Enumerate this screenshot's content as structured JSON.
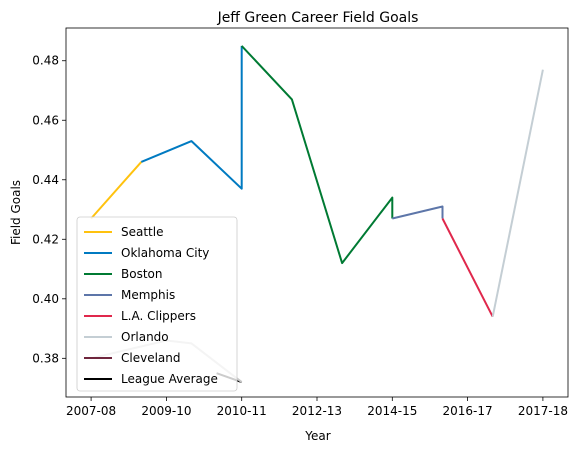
{
  "chart_data": {
    "type": "line",
    "title": "Jeff Green  Career Field Goals",
    "xlabel": "Year",
    "ylabel": "Field Goals",
    "x_ticks": [
      "2007-08",
      "2009-10",
      "2010-11",
      "2012-13",
      "2014-15",
      "2016-17",
      "2017-18"
    ],
    "x_tick_positions": [
      0,
      1.5,
      3,
      4.5,
      6,
      7.5,
      9
    ],
    "xlim": [
      -0.5,
      9.5
    ],
    "y_ticks": [
      0.38,
      0.4,
      0.42,
      0.44,
      0.46,
      0.48
    ],
    "ylim": [
      0.367,
      0.491
    ],
    "grid": false,
    "legend_position": "lower-left",
    "series": [
      {
        "name": "Seattle",
        "color": "#ffc20e",
        "points": [
          [
            0,
            0.427
          ],
          [
            1,
            0.446
          ]
        ]
      },
      {
        "name": "Oklahoma City",
        "color": "#007ac1",
        "points": [
          [
            1,
            0.446
          ],
          [
            2,
            0.453
          ],
          [
            3,
            0.437
          ],
          [
            3,
            0.485
          ]
        ]
      },
      {
        "name": "Boston",
        "color": "#007a33",
        "points": [
          [
            3,
            0.485
          ],
          [
            4,
            0.467
          ],
          [
            5,
            0.412
          ],
          [
            6,
            0.434
          ],
          [
            6,
            0.427
          ]
        ]
      },
      {
        "name": "Memphis",
        "color": "#5d76a9",
        "points": [
          [
            6,
            0.427
          ],
          [
            7,
            0.431
          ],
          [
            7,
            0.427
          ]
        ]
      },
      {
        "name": "L.A. Clippers",
        "color": "#e0284c",
        "points": [
          [
            7,
            0.427
          ],
          [
            8,
            0.394
          ]
        ]
      },
      {
        "name": "Orlando",
        "color": "#c4ced4",
        "points": [
          [
            8,
            0.394
          ],
          [
            9,
            0.477
          ]
        ]
      },
      {
        "name": "Cleveland",
        "color": "#6f263d",
        "points": []
      },
      {
        "name": "League Average",
        "color": "#000000",
        "points": [
          [
            2.5,
            0.375
          ],
          [
            3,
            0.372
          ]
        ]
      },
      {
        "name": "",
        "color": "#c8c8c8",
        "points": [
          [
            0,
            0.38
          ],
          [
            1.5,
            0.386
          ],
          [
            2,
            0.385
          ],
          [
            3,
            0.372
          ]
        ]
      }
    ]
  }
}
